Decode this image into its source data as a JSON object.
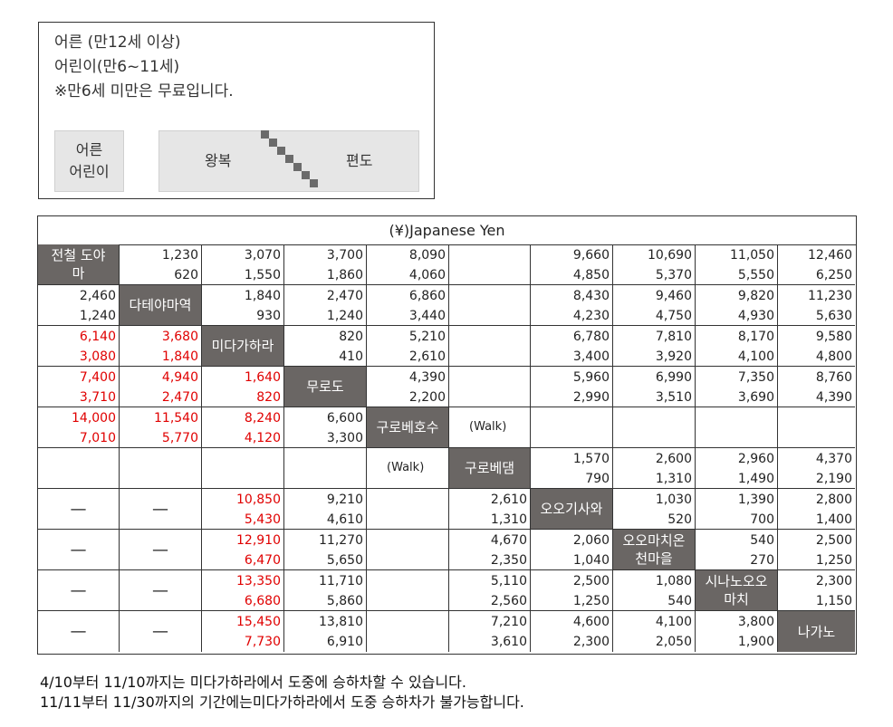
{
  "legend": {
    "lines": [
      "어른 (만12세 이상)",
      "어린이(만6~11세)",
      "※만6세 미만은 무료입니다."
    ],
    "cell_age_adult": "어른",
    "cell_age_child": "어린이",
    "cell_round": "왕복",
    "cell_oneway": "편도"
  },
  "table": {
    "currency_title": "(¥)Japanese Yen",
    "walk_label": "(Walk)",
    "dash": "—",
    "stations": [
      "전철 도야마",
      "다테야마역",
      "미다가하라",
      "무로도",
      "구로베호수",
      "구로베댐",
      "오오기사와",
      "오오마치온천마을",
      "시나노오오마치",
      "나가노"
    ],
    "station_lines": [
      [
        "전철 도야",
        "마"
      ],
      [
        "다테야마역"
      ],
      [
        "미다가하라"
      ],
      [
        "무로도"
      ],
      [
        "구로베호수"
      ],
      [
        "구로베댐"
      ],
      [
        "오오기사와"
      ],
      [
        "오오마치온",
        "천마을"
      ],
      [
        "시나노오오",
        "마치"
      ],
      [
        "나가노"
      ]
    ],
    "rows": [
      [
        "st",
        [
          "1,230",
          "620"
        ],
        [
          "3,070",
          "1,550"
        ],
        [
          "3,700",
          "1,860"
        ],
        [
          "8,090",
          "4,060"
        ],
        "blank",
        [
          "9,660",
          "4,850"
        ],
        [
          "10,690",
          "5,370"
        ],
        [
          "11,050",
          "5,550"
        ],
        [
          "12,460",
          "6,250"
        ]
      ],
      [
        [
          "2,460",
          "1,240"
        ],
        "st",
        [
          "1,840",
          "930"
        ],
        [
          "2,470",
          "1,240"
        ],
        [
          "6,860",
          "3,440"
        ],
        "blank",
        [
          "8,430",
          "4,230"
        ],
        [
          "9,460",
          "4,750"
        ],
        [
          "9,820",
          "4,930"
        ],
        [
          "11,230",
          "5,630"
        ]
      ],
      [
        [
          "6,140",
          "3,080",
          "r"
        ],
        [
          "3,680",
          "1,840",
          "r"
        ],
        "st",
        [
          "820",
          "410"
        ],
        [
          "5,210",
          "2,610"
        ],
        "blank",
        [
          "6,780",
          "3,400"
        ],
        [
          "7,810",
          "3,920"
        ],
        [
          "8,170",
          "4,100"
        ],
        [
          "9,580",
          "4,800"
        ]
      ],
      [
        [
          "7,400",
          "3,710",
          "r"
        ],
        [
          "4,940",
          "2,470",
          "r"
        ],
        [
          "1,640",
          "820",
          "r"
        ],
        "st",
        [
          "4,390",
          "2,200"
        ],
        "blank",
        [
          "5,960",
          "2,990"
        ],
        [
          "6,990",
          "3,510"
        ],
        [
          "7,350",
          "3,690"
        ],
        [
          "8,760",
          "4,390"
        ]
      ],
      [
        [
          "14,000",
          "7,010",
          "r"
        ],
        [
          "11,540",
          "5,770",
          "r"
        ],
        [
          "8,240",
          "4,120",
          "r"
        ],
        [
          "6,600",
          "3,300"
        ],
        "st",
        "walk",
        "blank",
        "blank",
        "blank",
        "blank"
      ],
      [
        "blank",
        "blank",
        "blank",
        "blank",
        "walk",
        "st",
        [
          "1,570",
          "790"
        ],
        [
          "2,600",
          "1,310"
        ],
        [
          "2,960",
          "1,490"
        ],
        [
          "4,370",
          "2,190"
        ]
      ],
      [
        "dash",
        "dash",
        [
          "10,850",
          "5,430",
          "r"
        ],
        [
          "9,210",
          "4,610"
        ],
        "blank",
        [
          "2,610",
          "1,310"
        ],
        "st",
        [
          "1,030",
          "520"
        ],
        [
          "1,390",
          "700"
        ],
        [
          "2,800",
          "1,400"
        ]
      ],
      [
        "dash",
        "dash",
        [
          "12,910",
          "6,470",
          "r"
        ],
        [
          "11,270",
          "5,650"
        ],
        "blank",
        [
          "4,670",
          "2,350"
        ],
        [
          "2,060",
          "1,040"
        ],
        "st",
        [
          "540",
          "270"
        ],
        [
          "2,500",
          "1,250"
        ]
      ],
      [
        "dash",
        "dash",
        [
          "13,350",
          "6,680",
          "r"
        ],
        [
          "11,710",
          "5,860"
        ],
        "blank",
        [
          "5,110",
          "2,560"
        ],
        [
          "2,500",
          "1,250"
        ],
        [
          "1,080",
          "540"
        ],
        "st",
        [
          "2,300",
          "1,150"
        ]
      ],
      [
        "dash",
        "dash",
        [
          "15,450",
          "7,730",
          "r"
        ],
        [
          "13,810",
          "6,910"
        ],
        "blank",
        [
          "7,210",
          "3,610"
        ],
        [
          "4,600",
          "2,300"
        ],
        [
          "4,100",
          "2,050"
        ],
        [
          "3,800",
          "1,900"
        ],
        "st"
      ]
    ]
  },
  "notes": [
    "4/10부터 11/10까지는 미다가하라에서 도중에 승하차할 수 있습니다.",
    "11/11부터 11/30까지의 기간에는미다가하라에서 도중 승하차가 불가능합니다."
  ],
  "colors": {
    "station_bg": "#6a6664",
    "red_fare": "#e00000",
    "legend_cell": "#e6e6e6"
  }
}
